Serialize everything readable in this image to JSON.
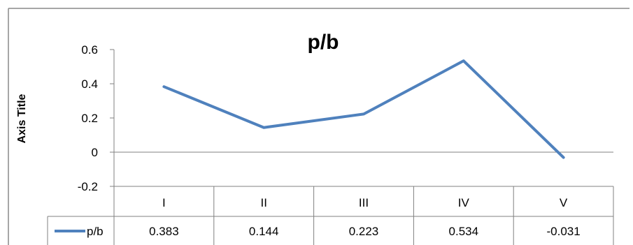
{
  "chart_data": {
    "type": "line",
    "title": "p/b",
    "ylabel": "Axis Title",
    "categories": [
      "I",
      "II",
      "III",
      "IV",
      "V"
    ],
    "series": [
      {
        "name": "p/b",
        "values": [
          0.383,
          0.144,
          0.223,
          0.534,
          -0.031
        ]
      }
    ],
    "data_table": {
      "row_label": "p/b",
      "values": [
        "0.383",
        "0.144",
        "0.223",
        "0.534",
        "-0.031"
      ]
    },
    "ylim": [
      -0.2,
      0.6
    ],
    "yticks": [
      "0.6",
      "0.4",
      "0.2",
      "0",
      "-0.2"
    ],
    "grid": false,
    "legend": "data-table-key",
    "colors": {
      "series": "#4f81bd",
      "axis": "#808080",
      "text": "#000000",
      "frame": "#888888"
    }
  }
}
